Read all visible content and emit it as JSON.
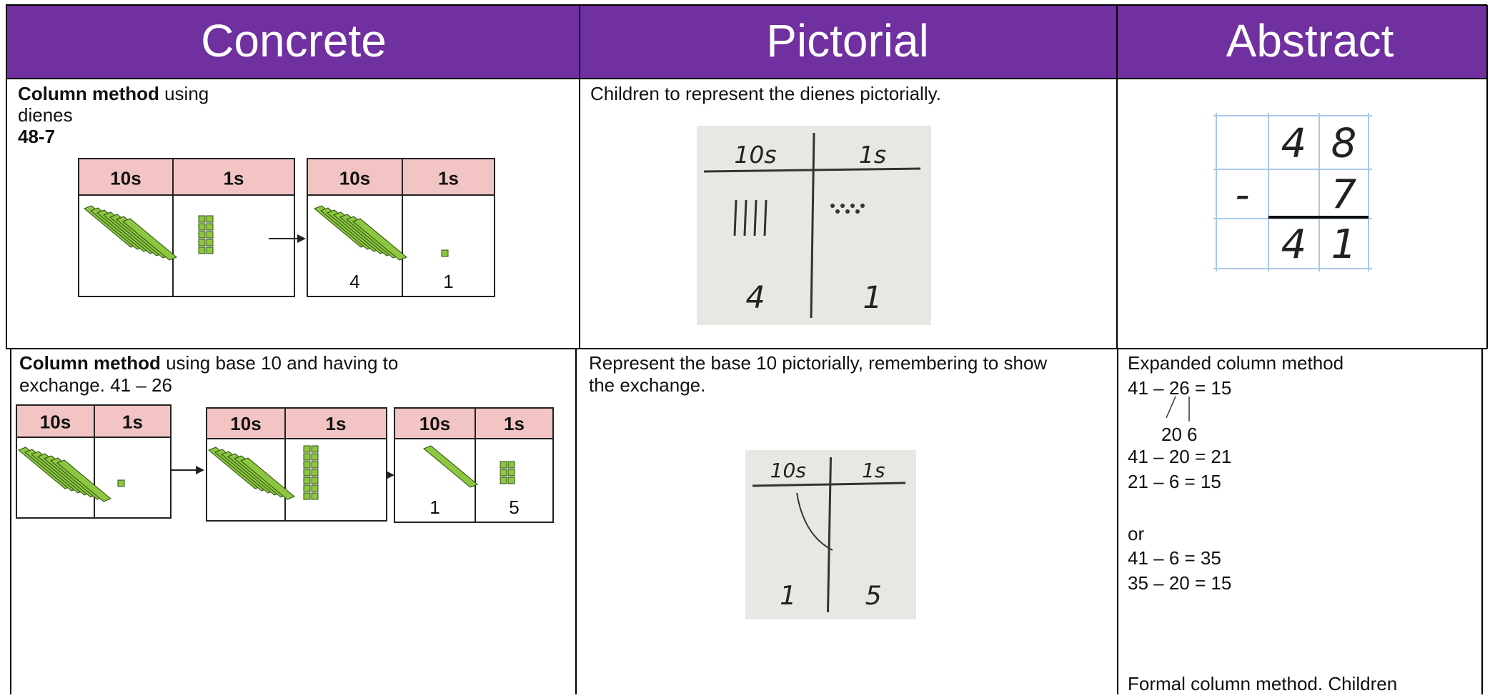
{
  "header": {
    "columns": [
      "Concrete",
      "Pictorial",
      "Abstract"
    ]
  },
  "rows": [
    {
      "concrete": {
        "lines": [
          {
            "bold": "Column method",
            "text": " using"
          },
          {
            "text": "dienes"
          },
          {
            "bold": "48-7"
          }
        ],
        "place_value_headers": [
          "10s",
          "1s"
        ],
        "result": [
          "4",
          "1"
        ]
      },
      "pictorial": {
        "lines": [
          "Children to represent the dienes pictorially."
        ],
        "photo": {
          "headers": [
            "10s",
            "1s"
          ],
          "result": [
            "4",
            "1"
          ]
        }
      },
      "abstract": {
        "top": [
          "4",
          "8"
        ],
        "operator": "-",
        "subtract": "7",
        "answer": [
          "4",
          "1"
        ]
      }
    },
    {
      "concrete": {
        "lines": [
          {
            "bold": "Column method",
            "text": " using base 10 and having to"
          },
          {
            "text": "exchange. 41 – 26"
          }
        ],
        "place_value_headers": [
          "10s",
          "1s"
        ],
        "result": [
          "1",
          "5"
        ]
      },
      "pictorial": {
        "lines": [
          "Represent the base 10 pictorially, remembering to show",
          "the exchange."
        ],
        "photo": {
          "headers": [
            "10s",
            "1s"
          ],
          "result": [
            "1",
            "5"
          ]
        }
      },
      "abstract": {
        "heading": "Expanded column method",
        "equation": "41 – 26 = 15",
        "partition": [
          "20",
          "6"
        ],
        "method_a": [
          "41 – 20 = 21",
          "21 – 6 = 15"
        ],
        "or": "or",
        "method_b": [
          "41 – 6 = 35",
          "35 – 20 = 15"
        ],
        "formal": "Formal column method. Children"
      }
    }
  ]
}
